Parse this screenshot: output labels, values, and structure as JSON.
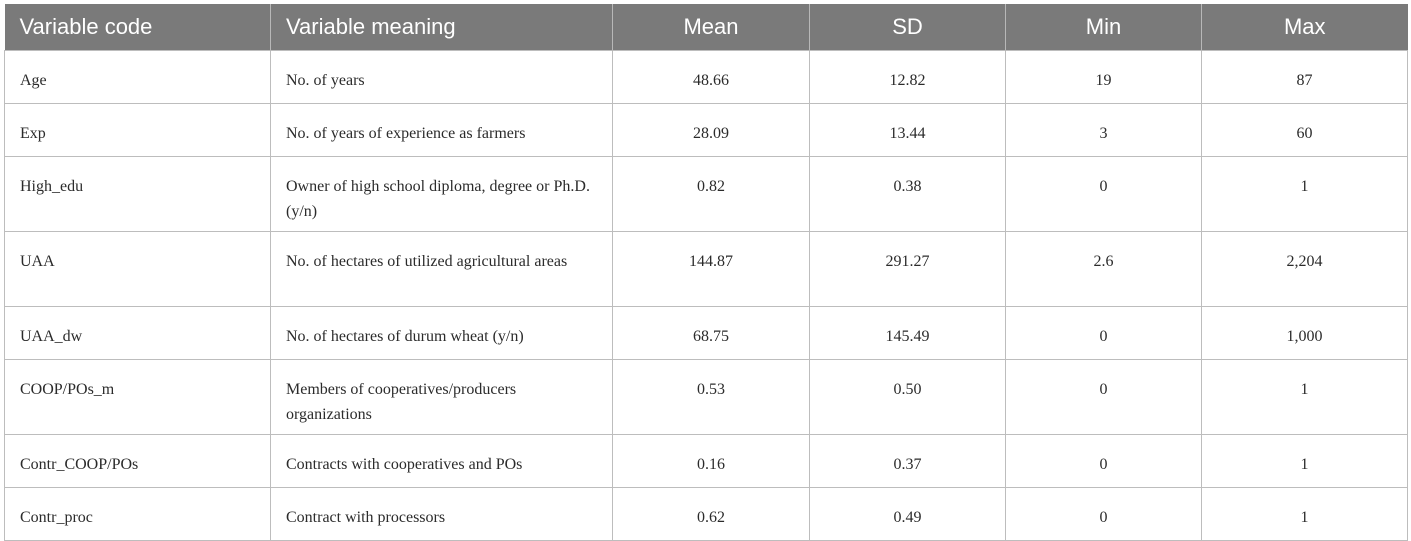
{
  "columns": [
    "Variable code",
    "Variable meaning",
    "Mean",
    "SD",
    "Min",
    "Max"
  ],
  "rows": [
    {
      "code": "Age",
      "meaning": "No. of years",
      "mean": "48.66",
      "sd": "12.82",
      "min": "19",
      "max": "87"
    },
    {
      "code": "Exp",
      "meaning": "No. of years of experience as farmers",
      "mean": "28.09",
      "sd": "13.44",
      "min": "3",
      "max": "60"
    },
    {
      "code": "High_edu",
      "meaning": "Owner of high school diploma, degree or Ph.D. (y/n)",
      "mean": "0.82",
      "sd": "0.38",
      "min": "0",
      "max": "1"
    },
    {
      "code": "UAA",
      "meaning": "No. of hectares of utilized agricultural areas",
      "mean": "144.87",
      "sd": "291.27",
      "min": "2.6",
      "max": "2,204"
    },
    {
      "code": "UAA_dw",
      "meaning": "No. of hectares of durum wheat (y/n)",
      "mean": "68.75",
      "sd": "145.49",
      "min": "0",
      "max": "1,000"
    },
    {
      "code": "COOP/POs_m",
      "meaning": "Members of cooperatives/producers organizations",
      "mean": "0.53",
      "sd": "0.50",
      "min": "0",
      "max": "1"
    },
    {
      "code": "Contr_COOP/POs",
      "meaning": "Contracts with cooperatives and POs",
      "mean": "0.16",
      "sd": "0.37",
      "min": "0",
      "max": "1"
    },
    {
      "code": "Contr_proc",
      "meaning": "Contract with processors",
      "mean": "0.62",
      "sd": "0.49",
      "min": "0",
      "max": "1"
    }
  ]
}
